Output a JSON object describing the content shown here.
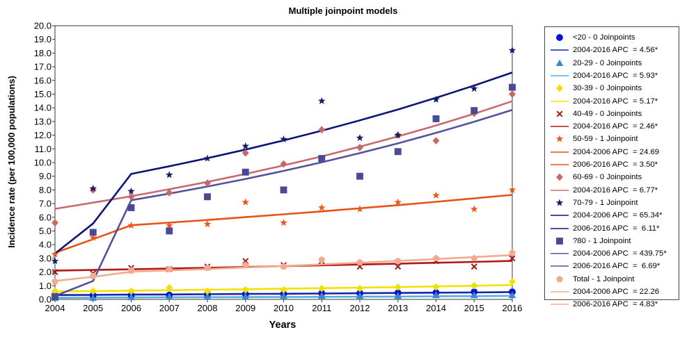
{
  "chart_data": {
    "type": "line",
    "title": "Multiple joinpoint models",
    "xlabel": "Years",
    "ylabel": "Incidence rate (per 100,000 populations)",
    "x": [
      2004,
      2005,
      2006,
      2007,
      2008,
      2009,
      2010,
      2011,
      2012,
      2013,
      2014,
      2015,
      2016
    ],
    "x_ticks": [
      "2004",
      "2005",
      "2006",
      "2007",
      "2008",
      "2009",
      "2010",
      "2011",
      "2012",
      "2013",
      "2014",
      "2015",
      "2016"
    ],
    "ylim": [
      0,
      20
    ],
    "y_ticks": [
      "0.0",
      "1.0",
      "2.0",
      "3.0",
      "4.0",
      "5.0",
      "6.0",
      "7.0",
      "8.0",
      "9.0",
      "10.0",
      "11.0",
      "12.0",
      "13.0",
      "14.0",
      "15.0",
      "16.0",
      "17.0",
      "18.0",
      "19.0",
      "20.0"
    ],
    "grid": false,
    "legend_position": "right",
    "series": [
      {
        "name": "<20 - 0 Joinpoints",
        "marker": "circle",
        "color": "#0a14d6",
        "line_color": "#1a22a8",
        "observed": [
          0.3,
          0.3,
          0.3,
          0.32,
          0.35,
          0.38,
          0.4,
          0.45,
          0.45,
          0.48,
          0.5,
          0.55,
          0.55
        ],
        "fitted": [
          0.32,
          0.33,
          0.35,
          0.36,
          0.38,
          0.4,
          0.41,
          0.43,
          0.45,
          0.47,
          0.49,
          0.51,
          0.54
        ],
        "segments": [
          "2004-2016 APC  = 4.56*"
        ]
      },
      {
        "name": "20-29 - 0 Joinpoints",
        "marker": "triangle",
        "color": "#3a88d0",
        "line_color": "#56aee0",
        "observed": [
          0.1,
          0.1,
          0.15,
          0.2,
          0.2,
          0.2,
          0.25,
          0.25,
          0.25,
          0.25,
          0.3,
          0.3,
          0.3
        ],
        "fitted": [
          0.12,
          0.13,
          0.14,
          0.15,
          0.16,
          0.17,
          0.18,
          0.19,
          0.2,
          0.21,
          0.23,
          0.24,
          0.26
        ],
        "segments": [
          "2004-2016 APC  = 5.93*"
        ]
      },
      {
        "name": "30-39 - 0 Joinpoints",
        "marker": "diamond",
        "color": "#f0e000",
        "line_color": "#f2e200",
        "observed": [
          0.6,
          0.6,
          0.6,
          0.85,
          0.6,
          0.7,
          0.7,
          0.8,
          0.8,
          0.9,
          0.9,
          1.0,
          1.3
        ],
        "fitted": [
          0.58,
          0.61,
          0.64,
          0.67,
          0.71,
          0.74,
          0.78,
          0.82,
          0.86,
          0.9,
          0.95,
          1.0,
          1.05
        ],
        "segments": [
          "2004-2016 APC  = 5.17*"
        ]
      },
      {
        "name": "40-49 - 0 Joinpoints",
        "marker": "x",
        "color": "#a01818",
        "line_color": "#b01818",
        "observed": [
          2.0,
          1.9,
          2.3,
          2.2,
          2.4,
          2.8,
          2.5,
          2.8,
          2.4,
          2.4,
          2.8,
          2.4,
          3.0
        ],
        "fitted": [
          2.1,
          2.15,
          2.2,
          2.26,
          2.31,
          2.37,
          2.43,
          2.49,
          2.55,
          2.61,
          2.68,
          2.74,
          2.81
        ],
        "segments": [
          "2004-2016 APC  = 2.46*"
        ]
      },
      {
        "name": "50-59 - 1 Joinpoint",
        "marker": "star",
        "color": "#e85a18",
        "line_color": "#e85214",
        "observed": [
          3.3,
          4.5,
          5.4,
          5.4,
          5.5,
          7.1,
          5.6,
          6.7,
          6.6,
          7.1,
          7.6,
          6.6,
          8.0
        ],
        "fitted": [
          3.4,
          4.4,
          5.42,
          5.61,
          5.8,
          6.01,
          6.22,
          6.43,
          6.66,
          6.89,
          7.13,
          7.38,
          7.64
        ],
        "segments": [
          "2004-2006 APC  = 24.69",
          "2006-2016 APC  = 3.50*"
        ]
      },
      {
        "name": "60-69 - 0 Joinpoints",
        "marker": "diamond",
        "color": "#c86868",
        "line_color": "#c86870",
        "observed": [
          5.6,
          8.0,
          7.5,
          7.8,
          8.5,
          10.7,
          9.9,
          12.4,
          11.1,
          12.0,
          11.6,
          13.6,
          15.0
        ],
        "fitted": [
          6.62,
          7.07,
          7.54,
          8.05,
          8.59,
          9.17,
          9.79,
          10.45,
          11.16,
          11.91,
          12.71,
          13.57,
          14.48
        ],
        "segments": [
          "2004-2016 APC  = 6.77*"
        ]
      },
      {
        "name": "70-79 - 1 Joinpoint",
        "marker": "star",
        "color": "#141c6c",
        "line_color": "#0c1478",
        "observed": [
          2.8,
          8.1,
          7.9,
          9.1,
          10.3,
          11.2,
          11.7,
          14.5,
          11.8,
          12.0,
          14.6,
          15.4,
          18.2
        ],
        "fitted": [
          3.35,
          5.55,
          9.17,
          9.73,
          10.32,
          10.95,
          11.62,
          12.33,
          13.08,
          13.88,
          14.73,
          15.63,
          16.58
        ],
        "segments": [
          "2004-2006 APC  = 65.34*",
          "2006-2016 APC  =  6.11*"
        ]
      },
      {
        "name": "?80 - 1 Joinpoint",
        "marker": "square",
        "color": "#4a4a94",
        "line_color": "#54509a",
        "observed": [
          0.2,
          4.9,
          6.7,
          5.0,
          7.5,
          9.3,
          8.0,
          10.3,
          9.0,
          10.8,
          13.2,
          13.8,
          15.5
        ],
        "fitted": [
          0.25,
          1.35,
          7.25,
          7.73,
          8.25,
          8.8,
          9.39,
          10.02,
          10.69,
          11.4,
          12.17,
          12.98,
          13.85
        ],
        "segments": [
          "2004-2006 APC  = 439.75*",
          "2006-2016 APC  =  6.69*"
        ]
      },
      {
        "name": "Total - 1 Joinpoint",
        "marker": "pentagon",
        "color": "#f4aa90",
        "line_color": "#f4aa8c",
        "observed": [
          1.3,
          1.7,
          2.1,
          2.2,
          2.3,
          2.5,
          2.4,
          2.9,
          2.7,
          2.8,
          3.0,
          3.0,
          3.4
        ],
        "fitted": [
          1.35,
          1.65,
          2.02,
          2.12,
          2.22,
          2.33,
          2.44,
          2.56,
          2.68,
          2.81,
          2.95,
          3.09,
          3.24
        ],
        "segments": [
          "2004-2006 APC  = 22.26",
          "2006-2016 APC  = 4.83*"
        ]
      }
    ]
  }
}
